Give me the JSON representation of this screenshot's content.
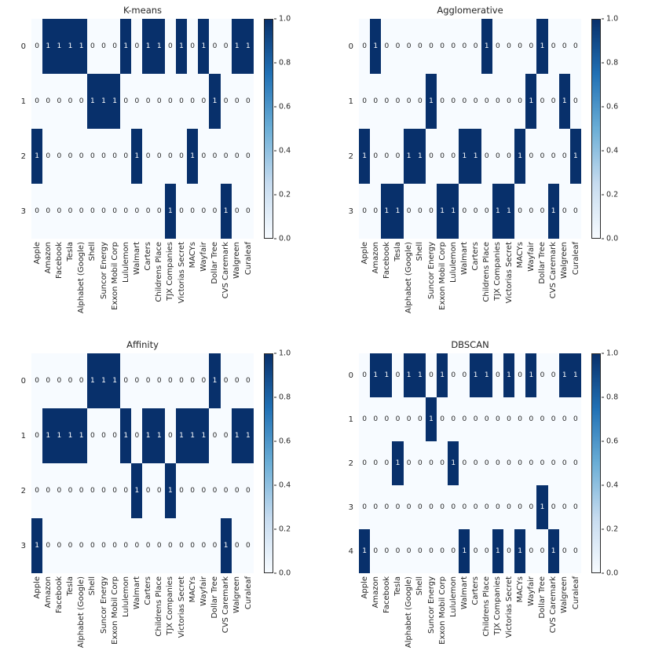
{
  "figure": {
    "background": "#ffffff",
    "text_color": "#262626",
    "layout": "2x2 subplot grid of cluster-membership heatmaps",
    "colormap": {
      "name": "Blues",
      "low": "#f7fbff",
      "high": "#08306b",
      "mid_stops": [
        "#c6dbef",
        "#6baed6",
        "#2171b5"
      ]
    },
    "annotation_colors": {
      "one": "#ffffff",
      "zero": "#262626"
    },
    "colorbar": {
      "position": "right",
      "ticks": [
        "1.0",
        "0.8",
        "0.6",
        "0.4",
        "0.2",
        "0.0"
      ]
    }
  },
  "chart_data": [
    {
      "type": "heatmap",
      "title": "K-means",
      "xlabel": "",
      "ylabel": "",
      "vmin": 0.0,
      "vmax": 1.0,
      "rows": [
        "0",
        "1",
        "2",
        "3"
      ],
      "columns": [
        "Apple",
        "Amazon",
        "Facebook",
        "Tesla",
        "Alphabet (Google)",
        "Shell",
        "Suncor Energy",
        "Exxon Mobil Corp",
        "Lululemon",
        "Walmart",
        "Carters",
        "Childrens Place",
        "TJX Companies",
        "Victorias Secret",
        "MACYs",
        "Wayfair",
        "Dollar Tree",
        "CVS Caremark",
        "Walgreen",
        "Curaleaf"
      ],
      "values": [
        [
          0,
          1,
          1,
          1,
          1,
          0,
          0,
          0,
          1,
          0,
          1,
          1,
          0,
          1,
          0,
          1,
          0,
          0,
          1,
          1
        ],
        [
          0,
          0,
          0,
          0,
          0,
          1,
          1,
          1,
          0,
          0,
          0,
          0,
          0,
          0,
          0,
          0,
          1,
          0,
          0,
          0
        ],
        [
          1,
          0,
          0,
          0,
          0,
          0,
          0,
          0,
          0,
          1,
          0,
          0,
          0,
          0,
          1,
          0,
          0,
          0,
          0,
          0
        ],
        [
          0,
          0,
          0,
          0,
          0,
          0,
          0,
          0,
          0,
          0,
          0,
          0,
          1,
          0,
          0,
          0,
          0,
          1,
          0,
          0
        ]
      ]
    },
    {
      "type": "heatmap",
      "title": "Agglomerative",
      "xlabel": "",
      "ylabel": "",
      "vmin": 0.0,
      "vmax": 1.0,
      "rows": [
        "0",
        "1",
        "2",
        "3"
      ],
      "columns": [
        "Apple",
        "Amazon",
        "Facebook",
        "Tesla",
        "Alphabet (Google)",
        "Shell",
        "Suncor Energy",
        "Exxon Mobil Corp",
        "Lululemon",
        "Walmart",
        "Carters",
        "Childrens Place",
        "TJX Companies",
        "Victorias Secret",
        "MACYs",
        "Wayfair",
        "Dollar Tree",
        "CVS Caremark",
        "Walgreen",
        "Curaleaf"
      ],
      "values": [
        [
          0,
          1,
          0,
          0,
          0,
          0,
          0,
          0,
          0,
          0,
          0,
          1,
          0,
          0,
          0,
          0,
          1,
          0,
          0,
          0
        ],
        [
          0,
          0,
          0,
          0,
          0,
          0,
          1,
          0,
          0,
          0,
          0,
          0,
          0,
          0,
          0,
          1,
          0,
          0,
          1,
          0
        ],
        [
          1,
          0,
          0,
          0,
          1,
          1,
          0,
          0,
          0,
          1,
          1,
          0,
          0,
          0,
          1,
          0,
          0,
          0,
          0,
          1
        ],
        [
          0,
          0,
          1,
          1,
          0,
          0,
          0,
          1,
          1,
          0,
          0,
          0,
          1,
          1,
          0,
          0,
          0,
          1,
          0,
          0
        ]
      ]
    },
    {
      "type": "heatmap",
      "title": "Affinity",
      "xlabel": "",
      "ylabel": "",
      "vmin": 0.0,
      "vmax": 1.0,
      "rows": [
        "0",
        "1",
        "2",
        "3"
      ],
      "columns": [
        "Apple",
        "Amazon",
        "Facebook",
        "Tesla",
        "Alphabet (Google)",
        "Shell",
        "Suncor Energy",
        "Exxon Mobil Corp",
        "Lululemon",
        "Walmart",
        "Carters",
        "Childrens Place",
        "TJX Companies",
        "Victorias Secret",
        "MACYs",
        "Wayfair",
        "Dollar Tree",
        "CVS Caremark",
        "Walgreen",
        "Curaleaf"
      ],
      "values": [
        [
          0,
          0,
          0,
          0,
          0,
          1,
          1,
          1,
          0,
          0,
          0,
          0,
          0,
          0,
          0,
          0,
          1,
          0,
          0,
          0
        ],
        [
          0,
          1,
          1,
          1,
          1,
          0,
          0,
          0,
          1,
          0,
          1,
          1,
          0,
          1,
          1,
          1,
          0,
          0,
          1,
          1
        ],
        [
          0,
          0,
          0,
          0,
          0,
          0,
          0,
          0,
          0,
          1,
          0,
          0,
          1,
          0,
          0,
          0,
          0,
          0,
          0,
          0
        ],
        [
          1,
          0,
          0,
          0,
          0,
          0,
          0,
          0,
          0,
          0,
          0,
          0,
          0,
          0,
          0,
          0,
          0,
          1,
          0,
          0
        ]
      ]
    },
    {
      "type": "heatmap",
      "title": "DBSCAN",
      "xlabel": "",
      "ylabel": "",
      "vmin": 0.0,
      "vmax": 1.0,
      "rows": [
        "0",
        "1",
        "2",
        "3",
        "4"
      ],
      "columns": [
        "Apple",
        "Amazon",
        "Facebook",
        "Tesla",
        "Alphabet (Google)",
        "Shell",
        "Suncor Energy",
        "Exxon Mobil Corp",
        "Lululemon",
        "Walmart",
        "Carters",
        "Childrens Place",
        "TJX Companies",
        "Victorias Secret",
        "MACYs",
        "Wayfair",
        "Dollar Tree",
        "CVS Caremark",
        "Walgreen",
        "Curaleaf"
      ],
      "values": [
        [
          0,
          1,
          1,
          0,
          1,
          1,
          0,
          1,
          0,
          0,
          1,
          1,
          0,
          1,
          0,
          1,
          0,
          0,
          1,
          1
        ],
        [
          0,
          0,
          0,
          0,
          0,
          0,
          1,
          0,
          0,
          0,
          0,
          0,
          0,
          0,
          0,
          0,
          0,
          0,
          0,
          0
        ],
        [
          0,
          0,
          0,
          1,
          0,
          0,
          0,
          0,
          1,
          0,
          0,
          0,
          0,
          0,
          0,
          0,
          0,
          0,
          0,
          0
        ],
        [
          0,
          0,
          0,
          0,
          0,
          0,
          0,
          0,
          0,
          0,
          0,
          0,
          0,
          0,
          0,
          0,
          1,
          0,
          0,
          0
        ],
        [
          1,
          0,
          0,
          0,
          0,
          0,
          0,
          0,
          0,
          1,
          0,
          0,
          1,
          0,
          1,
          0,
          0,
          1,
          0,
          0
        ]
      ]
    }
  ]
}
